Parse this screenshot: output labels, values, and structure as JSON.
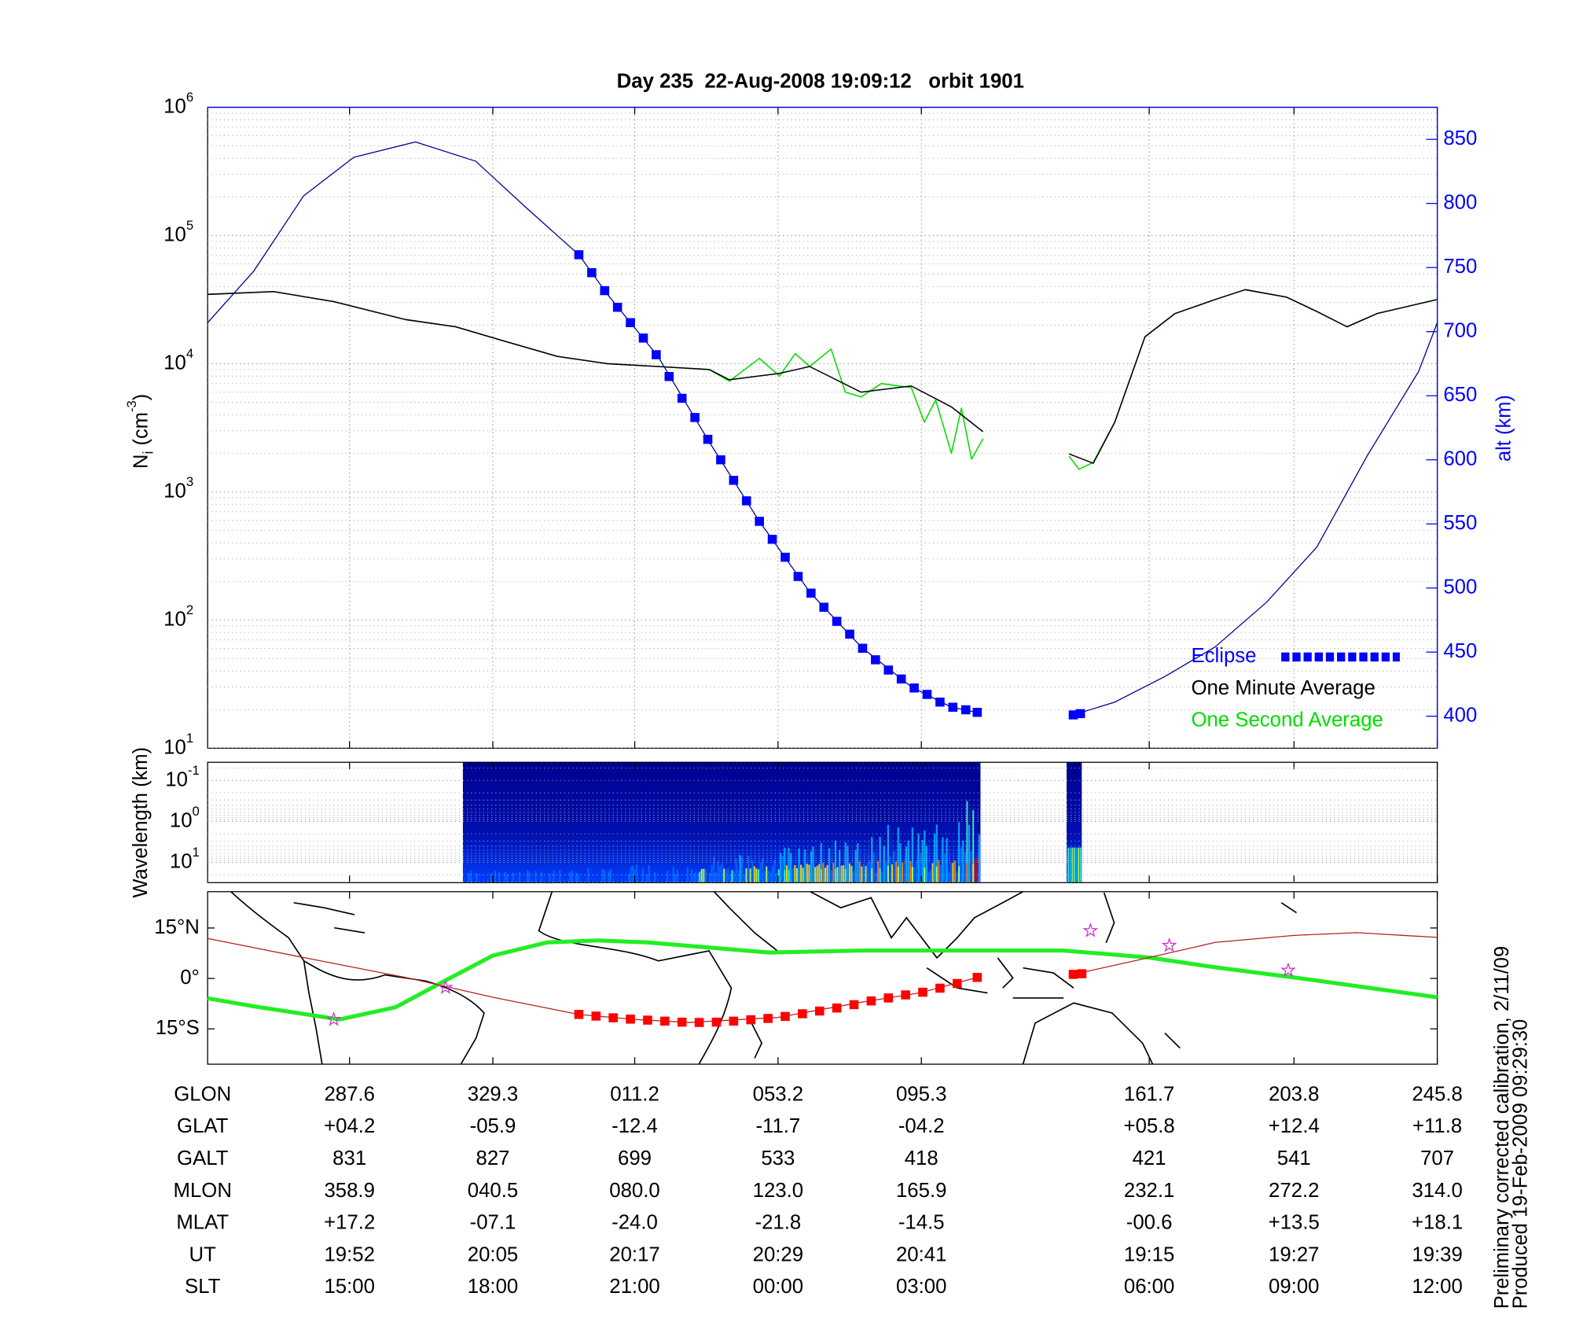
{
  "chart_data": [
    {
      "type": "line",
      "title": "Day 235  22-Aug-2008 19:09:12   orbit 1901",
      "ylabel": [
        "N",
        "i",
        " (cm",
        "-3",
        ")"
      ],
      "y2label": "alt (km)",
      "xlim": [
        0,
        8.58
      ],
      "xticks": [
        0.99,
        1.99,
        2.98,
        3.98,
        4.98,
        6.57,
        7.58,
        8.58
      ],
      "ylim": [
        10,
        1000000
      ],
      "log_y": true,
      "yticks": [
        {
          "value": 10,
          "label": "10",
          "exponent": "1"
        },
        {
          "value": 100,
          "label": "10",
          "exponent": "2"
        },
        {
          "value": 1000,
          "label": "10",
          "exponent": "3"
        },
        {
          "value": 10000,
          "label": "10",
          "exponent": "4"
        },
        {
          "value": 100000,
          "label": "10",
          "exponent": "5"
        },
        {
          "value": 1000000,
          "label": "10",
          "exponent": "6"
        }
      ],
      "y2lim": [
        375,
        875
      ],
      "y2ticks": [
        400,
        450,
        500,
        550,
        600,
        650,
        700,
        750,
        800,
        850
      ],
      "y2color": "#0000ff",
      "grid": true,
      "legend": "lower right",
      "series": [
        {
          "axis": "y2",
          "color": "#00008b",
          "x": [
            0,
            0.32,
            0.67,
            1.02,
            1.45,
            1.87,
            2.23,
            2.59,
            2.79,
            3.14,
            3.5,
            3.85,
            4.2,
            4.56,
            4.91,
            5.19,
            5.37,
            5.7,
            6.04,
            6.33,
            6.68,
            7.03,
            7.39,
            7.74,
            8.09,
            8.45,
            8.58
          ],
          "values": [
            707,
            747,
            806,
            836,
            848,
            833,
            796,
            760,
            729,
            681,
            614,
            552,
            497,
            454,
            423,
            407,
            403,
            null,
            401,
            411,
            431,
            454,
            489,
            532,
            603,
            669,
            707
          ]
        },
        {
          "name": "Eclipse",
          "axis": "y2",
          "color": "#0000ff",
          "marker": "square",
          "x": [
            2.59,
            2.68,
            2.77,
            2.86,
            2.95,
            3.04,
            3.13,
            3.22,
            3.31,
            3.4,
            3.49,
            3.58,
            3.67,
            3.76,
            3.85,
            3.94,
            4.03,
            4.12,
            4.21,
            4.3,
            4.39,
            4.48,
            4.57,
            4.66,
            4.75,
            4.84,
            4.93,
            5.02,
            5.11,
            5.2,
            5.29,
            5.37,
            6.04,
            6.09
          ],
          "values": [
            760,
            746,
            732,
            719,
            707,
            695,
            682,
            665,
            648,
            633,
            616,
            600,
            584,
            568,
            552,
            538,
            524,
            509,
            496,
            485,
            474,
            464,
            453,
            444,
            436,
            429,
            422,
            417,
            411,
            407,
            405,
            403,
            401,
            402
          ]
        },
        {
          "name": "One Minute Average",
          "color": "#000000",
          "x": [
            0,
            0.46,
            0.88,
            1.38,
            1.73,
            2.08,
            2.44,
            2.79,
            3.14,
            3.5,
            3.64,
            3.99,
            4.2,
            4.56,
            4.91,
            5.19,
            5.41,
            5.7,
            6.01,
            6.18,
            6.33,
            6.54,
            6.75,
            7.03,
            7.24,
            7.53,
            7.74,
            7.95,
            8.16,
            8.58
          ],
          "values": [
            34700,
            36500,
            30500,
            22100,
            19400,
            14900,
            11400,
            10000,
            9500,
            9000,
            7500,
            8400,
            9500,
            6000,
            6700,
            4600,
            2950,
            null,
            1980,
            1670,
            3500,
            16200,
            24600,
            31700,
            37800,
            33000,
            25500,
            19400,
            24600,
            31700
          ]
        },
        {
          "name": "One Second Average",
          "color": "#00dd00",
          "x": [
            0,
            0.46,
            0.88,
            1.38,
            1.73,
            2.08,
            2.44,
            2.79,
            3.14,
            3.5,
            3.64,
            3.85,
            3.99,
            4.1,
            4.2,
            4.35,
            4.45,
            4.56,
            4.7,
            4.91,
            5.0,
            5.08,
            5.19,
            5.26,
            5.33,
            5.41,
            5.7,
            6.01,
            6.08,
            6.18,
            6.33,
            6.54,
            6.75,
            7.03,
            7.24,
            7.53,
            7.74,
            7.95,
            8.16,
            8.58
          ],
          "values": [
            34700,
            36500,
            30500,
            22100,
            19400,
            14900,
            11400,
            10000,
            9500,
            9000,
            7300,
            11000,
            8000,
            12000,
            9500,
            13000,
            6000,
            5500,
            7000,
            6500,
            3500,
            5200,
            2000,
            4500,
            1800,
            2600,
            null,
            1900,
            1500,
            1700,
            3500,
            16200,
            24600,
            31700,
            37800,
            33000,
            25500,
            19400,
            24600,
            31700
          ]
        }
      ]
    },
    {
      "type": "spectrogram",
      "ylabel": "Wavelength (km)",
      "ylim": [
        31,
        0.036
      ],
      "log_y": true,
      "yticks": [
        {
          "value": 0.1,
          "label": "10",
          "exponent": "-1"
        },
        {
          "value": 1,
          "label": "10",
          "exponent": "0"
        },
        {
          "value": 10,
          "label": "10",
          "exponent": "1"
        }
      ]
    },
    {
      "type": "map",
      "ylim": [
        -25.5,
        25.8
      ],
      "yticks": [
        {
          "value": 15,
          "label": "15°N"
        },
        {
          "value": 0,
          "label": "0°"
        },
        {
          "value": -15,
          "label": "15°S"
        }
      ],
      "series": [
        {
          "color": "#b22222",
          "x": [
            0,
            0.67,
            1.38,
            1.99,
            2.59,
            2.98,
            3.36,
            3.98,
            4.56,
            4.98,
            5.37,
            5.7,
            6.04,
            6.57,
            7.03,
            7.58,
            8.02,
            8.58
          ],
          "values": [
            11.9,
            6.2,
            0.3,
            -5.6,
            -10.7,
            -12.2,
            -13.1,
            -11.6,
            -7.1,
            -4.2,
            0.3,
            null,
            1.2,
            6.2,
            10.7,
            12.8,
            13.6,
            12.2
          ]
        },
        {
          "color": "#ff0000",
          "marker": "square",
          "x": [
            2.59,
            2.71,
            2.83,
            2.95,
            3.07,
            3.19,
            3.31,
            3.43,
            3.55,
            3.67,
            3.79,
            3.91,
            4.03,
            4.15,
            4.27,
            4.39,
            4.51,
            4.63,
            4.75,
            4.87,
            4.99,
            5.11,
            5.23,
            5.37,
            6.04,
            6.1
          ],
          "values": [
            -10.7,
            -11.2,
            -11.7,
            -12.1,
            -12.4,
            -12.7,
            -13.0,
            -13.1,
            -13.0,
            -12.7,
            -12.3,
            -11.9,
            -11.3,
            -10.5,
            -9.7,
            -8.8,
            -7.8,
            -6.7,
            -5.8,
            -4.9,
            -4.1,
            -2.9,
            -1.5,
            0.3,
            1.2,
            1.4
          ]
        },
        {
          "color": "#22ee22",
          "width": 4,
          "x": [
            0,
            0.32,
            0.92,
            1.31,
            1.66,
            1.99,
            2.37,
            2.72,
            3.07,
            3.5,
            3.92,
            4.56,
            5.27,
            5.97,
            6.57,
            7.03,
            7.58,
            8.09,
            8.58
          ],
          "values": [
            -5.9,
            -8.3,
            -12.2,
            -8.6,
            -0.6,
            6.8,
            10.7,
            11.3,
            10.7,
            9.2,
            7.7,
            8.3,
            8.3,
            8.3,
            6.2,
            3.3,
            0.3,
            -2.7,
            -5.6
          ]
        },
        {
          "color": "#cc33cc",
          "marker": "star",
          "x": [
            0.88,
            1.66,
            6.16,
            6.71,
            7.54
          ],
          "values": [
            -12.2,
            -2.7,
            14.2,
            9.8,
            2.4
          ]
        }
      ]
    }
  ],
  "table": {
    "rows": [
      {
        "label": "GLON",
        "values": [
          "287.6",
          "329.3",
          "011.2",
          "053.2",
          "095.3",
          "161.7",
          "203.8",
          "245.8"
        ]
      },
      {
        "label": "GLAT",
        "values": [
          "+04.2",
          "-05.9",
          "-12.4",
          "-11.7",
          "-04.2",
          "+05.8",
          "+12.4",
          "+11.8"
        ]
      },
      {
        "label": "GALT",
        "values": [
          "831",
          "827",
          "699",
          "533",
          "418",
          "421",
          "541",
          "707"
        ]
      },
      {
        "label": "MLON",
        "values": [
          "358.9",
          "040.5",
          "080.0",
          "123.0",
          "165.9",
          "232.1",
          "272.2",
          "314.0"
        ]
      },
      {
        "label": "MLAT",
        "values": [
          "+17.2",
          "-07.1",
          "-24.0",
          "-21.8",
          "-14.5",
          "-00.6",
          "+13.5",
          "+18.1"
        ]
      },
      {
        "label": "UT",
        "values": [
          "19:52",
          "20:05",
          "20:17",
          "20:29",
          "20:41",
          "19:15",
          "19:27",
          "19:39"
        ]
      },
      {
        "label": "SLT",
        "values": [
          "15:00",
          "18:00",
          "21:00",
          "00:00",
          "03:00",
          "06:00",
          "09:00",
          "12:00"
        ]
      }
    ]
  },
  "notes": [
    "Preliminary corrected calibration, 2/11/09",
    "Produced 19-Feb-2009 09:29:30"
  ]
}
